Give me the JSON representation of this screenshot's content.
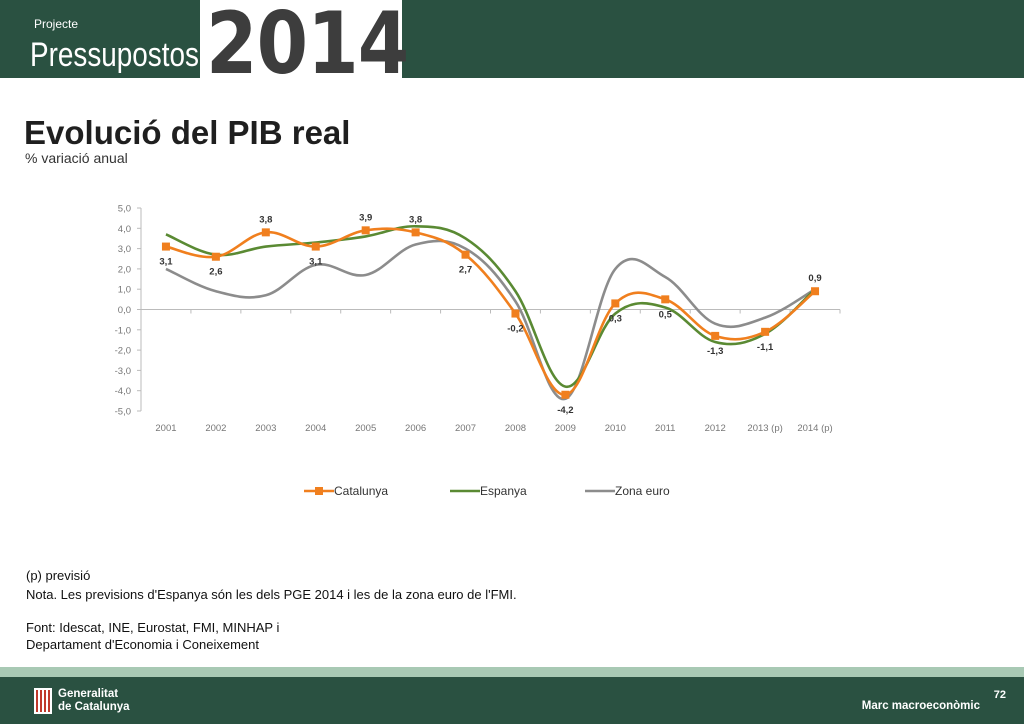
{
  "header": {
    "small_label": "Projecte",
    "title": "Pressupostos",
    "year": "2014"
  },
  "slide": {
    "title": "Evolució del PIB real",
    "subtitle": "% variació anual"
  },
  "chart_data": {
    "type": "line",
    "categories": [
      "2001",
      "2002",
      "2003",
      "2004",
      "2005",
      "2006",
      "2007",
      "2008",
      "2009",
      "2010",
      "2011",
      "2012",
      "2013 (p)",
      "2014 (p)"
    ],
    "ylim": [
      -5,
      5
    ],
    "yticks": [
      "5,0",
      "4,0",
      "3,0",
      "2,0",
      "1,0",
      "0,0",
      "-1,0",
      "-2,0",
      "-3,0",
      "-4,0",
      "-5,0"
    ],
    "yticks_values": [
      5,
      4,
      3,
      2,
      1,
      0,
      -1,
      -2,
      -3,
      -4,
      -5
    ],
    "grid": false,
    "legend_position": "bottom",
    "series": [
      {
        "name": "Catalunya",
        "color": "#f07f1e",
        "marker": "square",
        "values": [
          3.1,
          2.6,
          3.8,
          3.1,
          3.9,
          3.8,
          2.7,
          -0.2,
          -4.2,
          0.3,
          0.5,
          -1.3,
          -1.1,
          0.9
        ],
        "labels": [
          "3,1",
          "2,6",
          "3,8",
          "3,1",
          "3,9",
          "3,8",
          "2,7",
          "-0,2",
          "-4,2",
          "0,3",
          "0,5",
          "-1,3",
          "-1,1",
          "0,9"
        ]
      },
      {
        "name": "Espanya",
        "color": "#5a8a33",
        "marker": "none",
        "values": [
          3.7,
          2.7,
          3.1,
          3.3,
          3.6,
          4.1,
          3.5,
          0.9,
          -3.8,
          -0.2,
          0.1,
          -1.6,
          -1.2,
          1.0
        ]
      },
      {
        "name": "Zona euro",
        "color": "#8c8c8c",
        "marker": "none",
        "values": [
          2.0,
          0.9,
          0.7,
          2.2,
          1.7,
          3.2,
          3.0,
          0.4,
          -4.4,
          2.0,
          1.6,
          -0.7,
          -0.4,
          1.0
        ]
      }
    ]
  },
  "notes": {
    "forecast": "(p) previsió",
    "note": "Nota. Les previsions d'Espanya són les dels PGE 2014 i les de la zona euro de l'FMI.",
    "source_line1": "Font:  Idescat, INE, Eurostat, FMI,  MINHAP i",
    "source_line2": "Departament d'Economia i Coneixement"
  },
  "footer": {
    "org_line1": "Generalitat",
    "org_line2": "de Catalunya",
    "page_number": "72",
    "section": "Marc macroeconòmic"
  }
}
